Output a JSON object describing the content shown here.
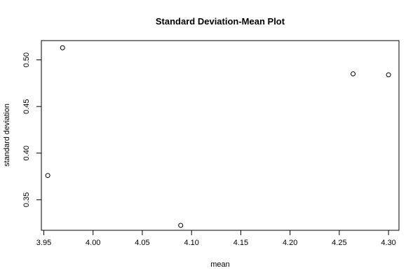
{
  "chart_data": {
    "type": "scatter",
    "title": "Standard Deviation-Mean Plot",
    "xlabel": "mean",
    "ylabel": "standard deviation",
    "xlim": [
      3.9475,
      4.3106
    ],
    "ylim": [
      0.3172,
      0.5207
    ],
    "x_ticks": [
      3.95,
      4.0,
      4.05,
      4.1,
      4.15,
      4.2,
      4.25,
      4.3
    ],
    "x_tick_labels": [
      "3.95",
      "4.00",
      "4.05",
      "4.10",
      "4.15",
      "4.20",
      "4.25",
      "4.30"
    ],
    "y_ticks": [
      0.35,
      0.4,
      0.45,
      0.5
    ],
    "y_tick_labels": [
      "0.35",
      "0.40",
      "0.45",
      "0.50"
    ],
    "points": [
      {
        "x": 3.954,
        "y": 0.376
      },
      {
        "x": 3.969,
        "y": 0.513
      },
      {
        "x": 4.089,
        "y": 0.3225
      },
      {
        "x": 4.264,
        "y": 0.485
      },
      {
        "x": 4.3,
        "y": 0.484
      }
    ],
    "marker": "open-circle",
    "grid": false,
    "legend": "none"
  }
}
